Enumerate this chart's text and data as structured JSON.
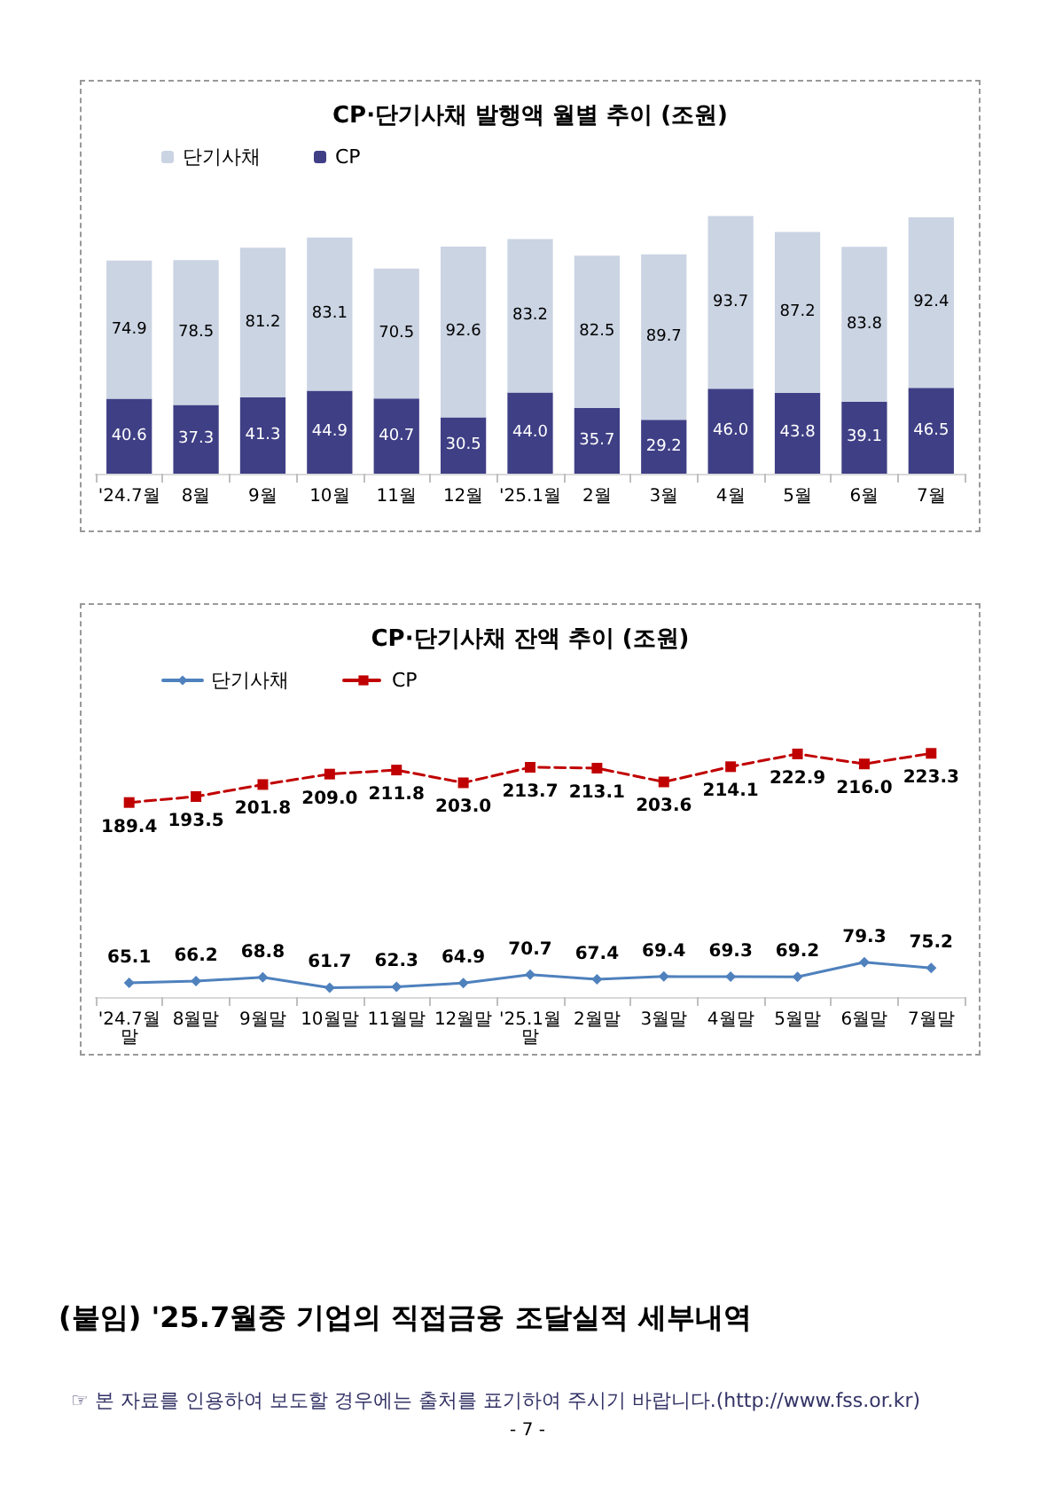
{
  "chart_data": [
    {
      "type": "bar",
      "title": "CP·단기사채 발행액 월별 추이 (조원)",
      "categories": [
        "'24.7월",
        "8월",
        "9월",
        "10월",
        "11월",
        "12월",
        "'25.1월",
        "2월",
        "3월",
        "4월",
        "5월",
        "6월",
        "7월"
      ],
      "stacked": true,
      "data_labels": true,
      "legend": "top left",
      "grid": false,
      "series": [
        {
          "name": "CP",
          "color": "#3f3f86",
          "values": [
            40.6,
            37.3,
            41.3,
            44.9,
            40.7,
            30.5,
            44.0,
            35.7,
            29.2,
            46.0,
            43.8,
            39.1,
            46.5
          ],
          "value_labels": [
            "40.6",
            "37.3",
            "41.3",
            "44.9",
            "40.7",
            "30.5",
            "44.0",
            "35.7",
            "29.2",
            "46.0",
            "43.8",
            "39.1",
            "46.5"
          ]
        },
        {
          "name": "단기사채",
          "color": "#cad4e3",
          "values": [
            74.9,
            78.5,
            81.2,
            83.1,
            70.5,
            92.6,
            83.2,
            82.5,
            89.7,
            93.7,
            87.2,
            83.8,
            92.4
          ]
        }
      ]
    },
    {
      "type": "line",
      "title": "CP·단기사채 잔액 추이 (조원)",
      "categories": [
        "'24.7월말",
        "8월말",
        "9월말",
        "10월말",
        "11월말",
        "12월말",
        "'25.1월말",
        "2월말",
        "3월말",
        "4월말",
        "5월말",
        "6월말",
        "7월말"
      ],
      "data_labels": true,
      "legend": "top left",
      "grid": false,
      "series": [
        {
          "name": "단기사채",
          "color": "#4f81bd",
          "marker": "diamond",
          "line_style": "solid",
          "values": [
            65.1,
            66.2,
            68.8,
            61.7,
            62.3,
            64.9,
            70.7,
            67.4,
            69.4,
            69.3,
            69.2,
            79.3,
            75.2
          ]
        },
        {
          "name": "CP",
          "color": "#c00000",
          "marker": "square",
          "line_style": "dashed",
          "values": [
            189.4,
            193.5,
            201.8,
            209.0,
            211.8,
            203.0,
            213.7,
            213.1,
            203.6,
            214.1,
            222.9,
            216.0,
            223.3
          ],
          "value_labels": [
            "189.4",
            "193.5",
            "201.8",
            "209.0",
            "211.8",
            "203.0",
            "213.7",
            "213.1",
            "203.6",
            "214.1",
            "222.9",
            "216.0",
            "223.3"
          ]
        }
      ],
      "annotations": [
        "(붙임) '25.7월중 기업의 직접금융 조달실적 세부내역",
        "☞ 본 자료를 인용하여 보도할 경우에는 출처를 표기하여 주시기 바랍니다.(http://www.fss.or.kr)",
        "- 7 -"
      ]
    }
  ]
}
